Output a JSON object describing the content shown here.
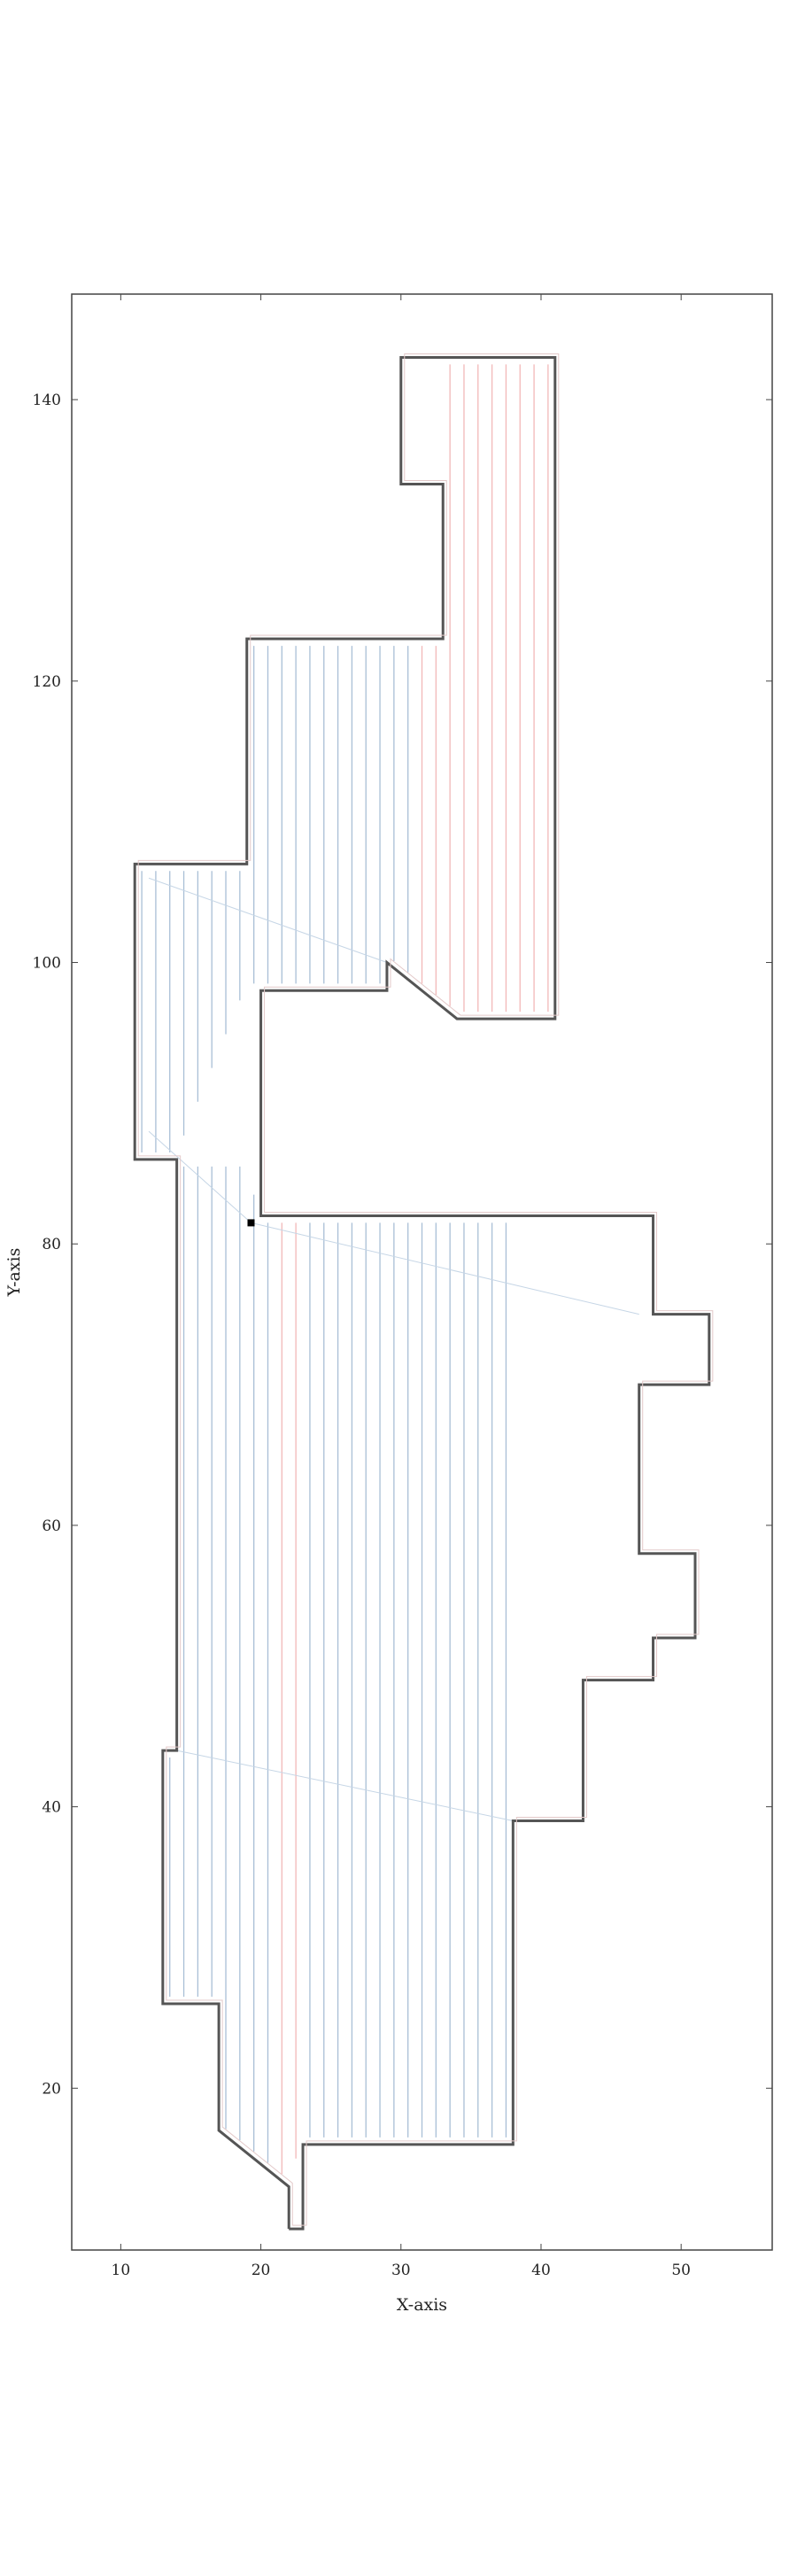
{
  "chart_data": {
    "type": "line",
    "title": "",
    "xlabel": "X-axis",
    "ylabel": "Y-axis",
    "xlim": [
      6.5,
      56.5
    ],
    "ylim": [
      8.5,
      147.5
    ],
    "xticks": [
      10,
      20,
      30,
      40,
      50
    ],
    "yticks": [
      20,
      40,
      60,
      80,
      100,
      120,
      140
    ],
    "grid": false,
    "legend": "none",
    "colors": {
      "boundary": "#555555",
      "boundary_inner": "#e3c9c9",
      "path_a": "#f2b8b8",
      "path_b": "#a9bfd6",
      "transit": "#c6d6e6",
      "start_marker": "#000000",
      "axes": "#444444"
    },
    "start_point": [
      19.3,
      81.5
    ],
    "boundary": [
      [
        22,
        10
      ],
      [
        23,
        10
      ],
      [
        23,
        16
      ],
      [
        38,
        16
      ],
      [
        38,
        39
      ],
      [
        43,
        39
      ],
      [
        43,
        49
      ],
      [
        48,
        49
      ],
      [
        48,
        52
      ],
      [
        51,
        52
      ],
      [
        51,
        58
      ],
      [
        47,
        58
      ],
      [
        47,
        70
      ],
      [
        52,
        70
      ],
      [
        52,
        75
      ],
      [
        48,
        75
      ],
      [
        48,
        82
      ],
      [
        20,
        82
      ],
      [
        20,
        98
      ],
      [
        29,
        98
      ],
      [
        29,
        100
      ],
      [
        34,
        96
      ],
      [
        41,
        96
      ],
      [
        41,
        143
      ],
      [
        30,
        143
      ],
      [
        30,
        134
      ],
      [
        33,
        134
      ],
      [
        33,
        123
      ],
      [
        19,
        123
      ],
      [
        19,
        107
      ],
      [
        11,
        107
      ],
      [
        11,
        86
      ],
      [
        14,
        86
      ],
      [
        14,
        44
      ],
      [
        13,
        44
      ],
      [
        13,
        26
      ],
      [
        17,
        26
      ],
      [
        17,
        17
      ],
      [
        22,
        13
      ],
      [
        22,
        10
      ]
    ],
    "sweep_regions": [
      {
        "name": "lower",
        "x_from": 13.5,
        "x_to": 51.5,
        "step": 1.0,
        "bottom_outline": [
          [
            13,
            26
          ],
          [
            17,
            26
          ],
          [
            17,
            17
          ],
          [
            22,
            13
          ],
          [
            23,
            16
          ],
          [
            38,
            16
          ]
        ],
        "top_outline": [
          [
            13,
            44
          ],
          [
            14,
            44
          ],
          [
            14,
            86
          ],
          [
            19,
            86
          ],
          [
            20,
            82
          ],
          [
            48,
            82
          ],
          [
            48,
            75
          ],
          [
            52,
            75
          ],
          [
            52,
            70
          ],
          [
            47,
            70
          ],
          [
            47,
            58
          ],
          [
            51,
            58
          ],
          [
            51,
            52
          ],
          [
            48,
            52
          ],
          [
            48,
            49
          ],
          [
            43,
            49
          ],
          [
            43,
            39
          ],
          [
            38,
            39
          ]
        ]
      },
      {
        "name": "upper",
        "x_from": 11.5,
        "x_to": 40.5,
        "step": 1.0,
        "bottom_outline": [
          [
            11,
            86
          ],
          [
            14,
            86
          ],
          [
            19,
            98
          ],
          [
            29,
            98
          ],
          [
            29,
            100
          ],
          [
            34,
            96
          ],
          [
            41,
            96
          ]
        ],
        "top_outline": [
          [
            11,
            107
          ],
          [
            19,
            107
          ],
          [
            19,
            123
          ],
          [
            30,
            123
          ],
          [
            33,
            123
          ],
          [
            33,
            134
          ],
          [
            30,
            134
          ],
          [
            30,
            143
          ],
          [
            41,
            143
          ]
        ]
      }
    ]
  }
}
